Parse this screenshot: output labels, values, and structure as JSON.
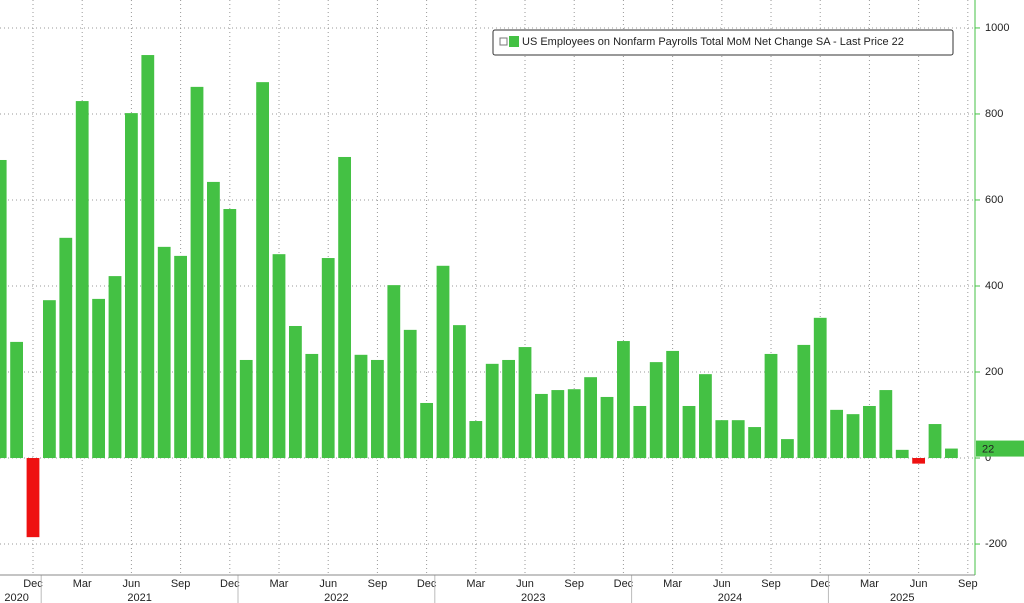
{
  "chart_data": {
    "type": "bar",
    "x": [
      "2020-10",
      "2020-11",
      "2020-12",
      "2021-01",
      "2021-02",
      "2021-03",
      "2021-04",
      "2021-05",
      "2021-06",
      "2021-07",
      "2021-08",
      "2021-09",
      "2021-10",
      "2021-11",
      "2021-12",
      "2022-01",
      "2022-02",
      "2022-03",
      "2022-04",
      "2022-05",
      "2022-06",
      "2022-07",
      "2022-08",
      "2022-09",
      "2022-10",
      "2022-11",
      "2022-12",
      "2023-01",
      "2023-02",
      "2023-03",
      "2023-04",
      "2023-05",
      "2023-06",
      "2023-07",
      "2023-08",
      "2023-09",
      "2023-10",
      "2023-11",
      "2023-12",
      "2024-01",
      "2024-02",
      "2024-03",
      "2024-04",
      "2024-05",
      "2024-06",
      "2024-07",
      "2024-08",
      "2024-09",
      "2024-10",
      "2024-11",
      "2024-12",
      "2025-01",
      "2025-02",
      "2025-03",
      "2025-04",
      "2025-05",
      "2025-06",
      "2025-07",
      "2025-08"
    ],
    "series": [
      {
        "name": "US Employees on Nonfarm Payrolls Total MoM Net Change SA - Last Price 22",
        "color": "#44c144",
        "negative_color": "#ee1111",
        "values": [
          693,
          270,
          -184,
          367,
          512,
          830,
          370,
          423,
          802,
          937,
          491,
          470,
          863,
          642,
          579,
          228,
          874,
          474,
          307,
          242,
          465,
          700,
          240,
          228,
          402,
          298,
          128,
          447,
          309,
          86,
          219,
          228,
          258,
          149,
          158,
          160,
          188,
          142,
          272,
          121,
          223,
          249,
          121,
          195,
          88,
          88,
          72,
          242,
          44,
          263,
          326,
          112,
          102,
          121,
          158,
          19,
          -13,
          79,
          22
        ]
      }
    ],
    "last_price": 22,
    "xlim": [
      "2020-10",
      "2025-09"
    ],
    "xticks": [
      {
        "value": "2020-12",
        "label": "Dec"
      },
      {
        "value": "2021-03",
        "label": "Mar"
      },
      {
        "value": "2021-06",
        "label": "Jun"
      },
      {
        "value": "2021-09",
        "label": "Sep"
      },
      {
        "value": "2021-12",
        "label": "Dec"
      },
      {
        "value": "2022-03",
        "label": "Mar"
      },
      {
        "value": "2022-06",
        "label": "Jun"
      },
      {
        "value": "2022-09",
        "label": "Sep"
      },
      {
        "value": "2022-12",
        "label": "Dec"
      },
      {
        "value": "2023-03",
        "label": "Mar"
      },
      {
        "value": "2023-06",
        "label": "Jun"
      },
      {
        "value": "2023-09",
        "label": "Sep"
      },
      {
        "value": "2023-12",
        "label": "Dec"
      },
      {
        "value": "2024-03",
        "label": "Mar"
      },
      {
        "value": "2024-06",
        "label": "Jun"
      },
      {
        "value": "2024-09",
        "label": "Sep"
      },
      {
        "value": "2024-12",
        "label": "Dec"
      },
      {
        "value": "2025-03",
        "label": "Mar"
      },
      {
        "value": "2025-06",
        "label": "Jun"
      },
      {
        "value": "2025-09",
        "label": "Sep"
      }
    ],
    "years": [
      "2020",
      "2021",
      "2022",
      "2023",
      "2024",
      "2025"
    ],
    "ylim": [
      -272,
      1065
    ],
    "yticks": [
      -200,
      0,
      200,
      400,
      600,
      800,
      1000
    ],
    "grid": true,
    "legend": "top-right"
  }
}
